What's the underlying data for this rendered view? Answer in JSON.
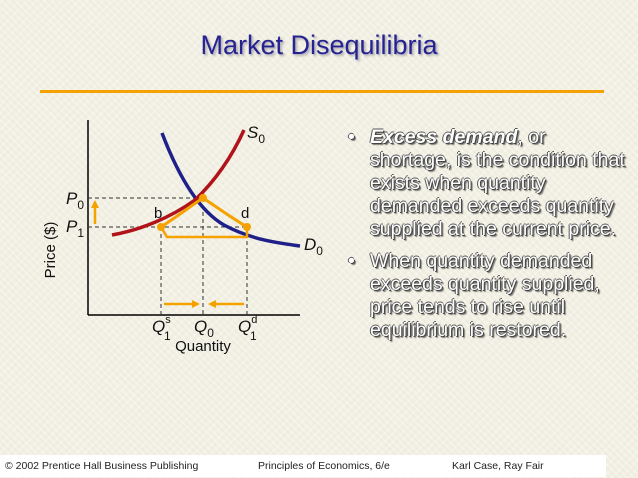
{
  "title": "Market Disequilibria",
  "diagram": {
    "y_axis_label": "Price ($)",
    "x_axis_label": "Quantity",
    "price_labels": [
      {
        "letter": "P",
        "sub": "0"
      },
      {
        "letter": "P",
        "sub": "1"
      }
    ],
    "quantity_labels": [
      {
        "letter": "Q",
        "sup": "s",
        "sub": "1"
      },
      {
        "letter": "Q",
        "sup": "",
        "sub": "0"
      },
      {
        "letter": "Q",
        "sup": "d",
        "sub": "1"
      }
    ],
    "supply_curve": {
      "letter": "S",
      "sub": "0"
    },
    "demand_curve": {
      "letter": "D",
      "sub": "0"
    },
    "point_b": "b",
    "point_d": "d",
    "colors": {
      "supply": "#b0141a",
      "demand": "#20208a",
      "arrow": "#f5a100",
      "axis": "#000000"
    }
  },
  "bullets": [
    {
      "bullet": "•",
      "emph": "Excess demand",
      "rest": ", or shortage, is the condition that exists when quantity demanded exceeds quantity supplied at the current price."
    },
    {
      "bullet": "•",
      "emph": "",
      "rest": "When quantity demanded exceeds quantity supplied, price tends to rise until equilibrium is restored."
    }
  ],
  "footer": {
    "left": "© 2002 Prentice Hall Business Publishing",
    "center": "Principles of Economics, 6/e",
    "right": "Karl Case, Ray Fair"
  }
}
